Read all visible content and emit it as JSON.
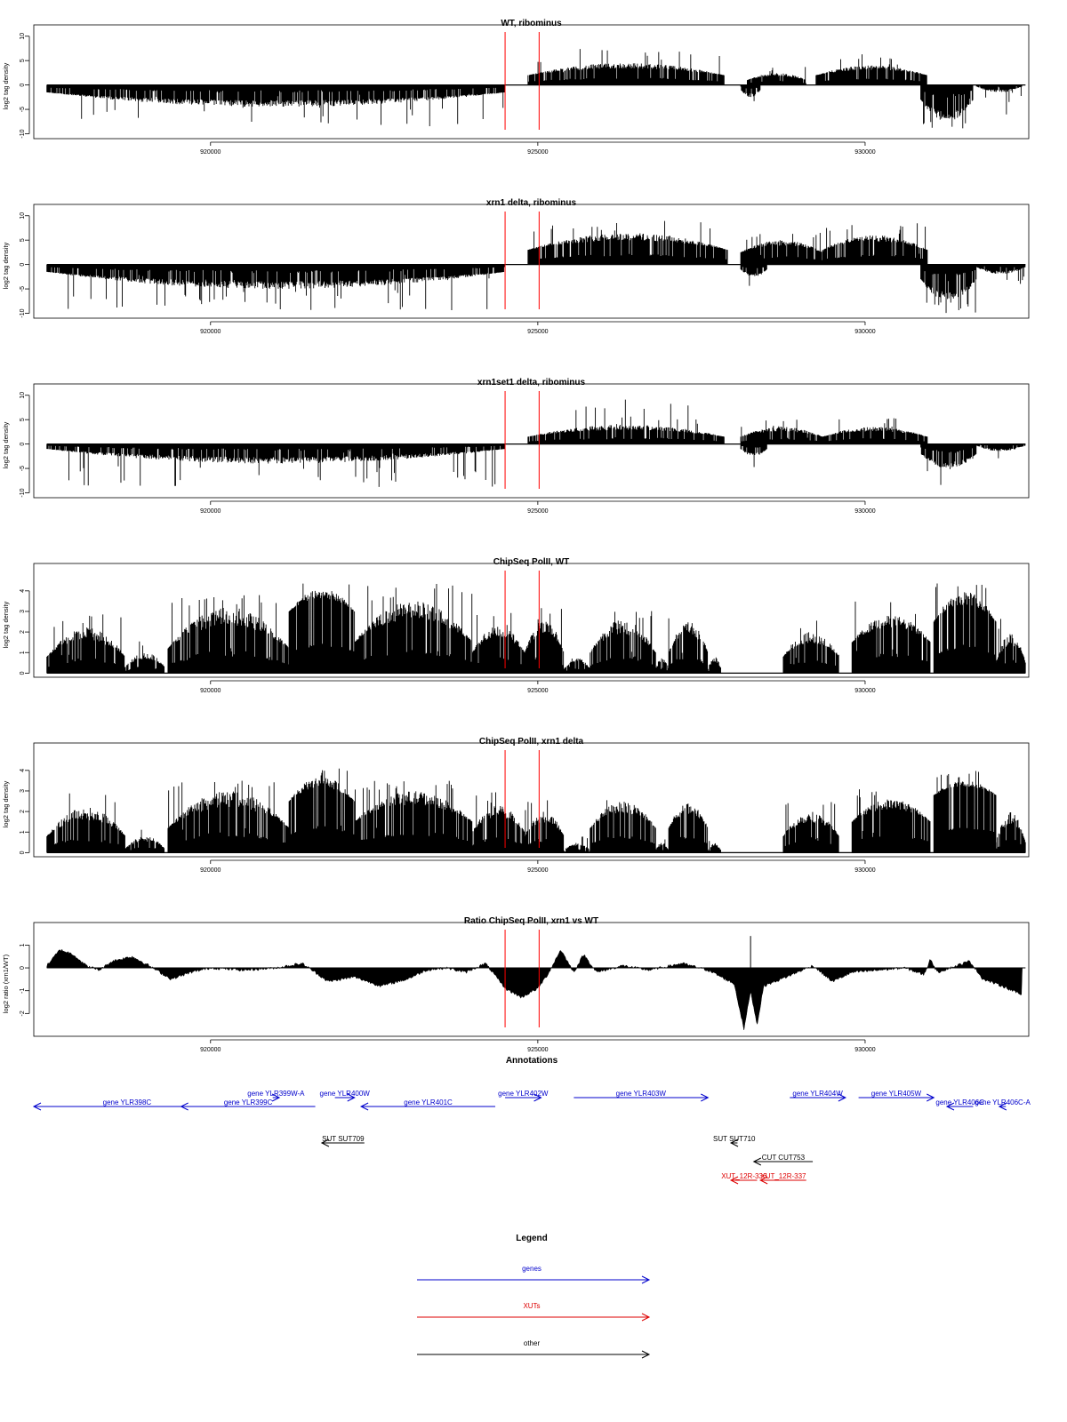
{
  "chart_data": [
    {
      "type": "bar",
      "title": "WT, ribominus",
      "ylabel": "log2 tag density",
      "ylim": [
        -11,
        10.5
      ],
      "yticks": [
        -10,
        -5,
        0,
        5,
        10
      ],
      "xlim": [
        917300,
        932500
      ],
      "xticks": [
        920000,
        925000,
        930000
      ],
      "markers": [
        924500,
        925020
      ],
      "series": [
        {
          "name": "",
          "segments": [
            {
              "from": 917500,
              "to": 924500,
              "dir": -1,
              "lo": 1.5,
              "hi": 4.5,
              "peak": 8.5
            },
            {
              "from": 924850,
              "to": 927850,
              "dir": 1,
              "lo": 2.0,
              "hi": 4.5,
              "peak": 7.5
            },
            {
              "from": 928100,
              "to": 928400,
              "dir": -1,
              "lo": 1.0,
              "hi": 2.5,
              "peak": 5.5
            },
            {
              "from": 928200,
              "to": 929100,
              "dir": 1,
              "lo": 1.0,
              "hi": 2.5,
              "peak": 4.0
            },
            {
              "from": 929250,
              "to": 930950,
              "dir": 1,
              "lo": 2.0,
              "hi": 4.0,
              "peak": 6.5
            },
            {
              "from": 930850,
              "to": 931650,
              "dir": -1,
              "lo": 3.0,
              "hi": 7.5,
              "peak": 9.5
            },
            {
              "from": 931700,
              "to": 932400,
              "dir": -1,
              "lo": 0.3,
              "hi": 1.5,
              "peak": 6.5
            }
          ]
        }
      ]
    },
    {
      "type": "bar",
      "title": "xrn1 delta, ribominus",
      "ylabel": "log2 tag density",
      "ylim": [
        -11,
        10.5
      ],
      "yticks": [
        -10,
        -5,
        0,
        5,
        10
      ],
      "xlim": [
        917300,
        932500
      ],
      "xticks": [
        920000,
        925000,
        930000
      ],
      "markers": [
        924500,
        925020
      ],
      "series": [
        {
          "name": "",
          "segments": [
            {
              "from": 917500,
              "to": 924500,
              "dir": -1,
              "lo": 1.5,
              "hi": 5.0,
              "peak": 9.5
            },
            {
              "from": 924850,
              "to": 927900,
              "dir": 1,
              "lo": 3.0,
              "hi": 6.5,
              "peak": 9.0
            },
            {
              "from": 928100,
              "to": 928500,
              "dir": -1,
              "lo": 1.0,
              "hi": 2.5,
              "peak": 5.5
            },
            {
              "from": 928100,
              "to": 929350,
              "dir": 1,
              "lo": 2.5,
              "hi": 5.0,
              "peak": 6.5
            },
            {
              "from": 929350,
              "to": 930950,
              "dir": 1,
              "lo": 3.0,
              "hi": 6.0,
              "peak": 8.5
            },
            {
              "from": 930850,
              "to": 931700,
              "dir": -1,
              "lo": 3.0,
              "hi": 7.5,
              "peak": 10.0
            },
            {
              "from": 931700,
              "to": 932450,
              "dir": -1,
              "lo": 0.5,
              "hi": 2.0,
              "peak": 4.0
            }
          ]
        }
      ]
    },
    {
      "type": "bar",
      "title": "xrn1set1 delta, ribominus",
      "ylabel": "log2 tag density",
      "ylim": [
        -11,
        10.5
      ],
      "yticks": [
        -10,
        -5,
        0,
        5,
        10
      ],
      "xlim": [
        917300,
        932500
      ],
      "xticks": [
        920000,
        925000,
        930000
      ],
      "markers": [
        924500,
        925020
      ],
      "series": [
        {
          "name": "",
          "segments": [
            {
              "from": 917500,
              "to": 924500,
              "dir": -1,
              "lo": 1.0,
              "hi": 4.0,
              "peak": 9.0
            },
            {
              "from": 924850,
              "to": 927850,
              "dir": 1,
              "lo": 1.5,
              "hi": 4.0,
              "peak": 9.5
            },
            {
              "from": 928100,
              "to": 928500,
              "dir": -1,
              "lo": 1.0,
              "hi": 2.5,
              "peak": 6.0
            },
            {
              "from": 928100,
              "to": 929350,
              "dir": 1,
              "lo": 1.5,
              "hi": 3.5,
              "peak": 5.5
            },
            {
              "from": 929350,
              "to": 930950,
              "dir": 1,
              "lo": 1.5,
              "hi": 3.5,
              "peak": 5.5
            },
            {
              "from": 930850,
              "to": 931700,
              "dir": -1,
              "lo": 2.0,
              "hi": 5.0,
              "peak": 9.0
            },
            {
              "from": 931700,
              "to": 932450,
              "dir": -1,
              "lo": 0.3,
              "hi": 1.5,
              "peak": 4.0
            }
          ]
        }
      ]
    },
    {
      "type": "bar",
      "title": "ChipSeq PolII, WT",
      "ylabel": "log2 tag density",
      "ylim": [
        -0.2,
        4.9
      ],
      "yticks": [
        0,
        1,
        2,
        3,
        4
      ],
      "xlim": [
        917300,
        932500
      ],
      "xticks": [
        920000,
        925000,
        930000
      ],
      "markers": [
        924500,
        925020
      ],
      "series": [
        {
          "name": "",
          "segments": [
            {
              "from": 917500,
              "to": 918700,
              "dir": 1,
              "lo": 0.8,
              "hi": 2.2,
              "peak": 2.9
            },
            {
              "from": 918700,
              "to": 919300,
              "dir": 1,
              "lo": 0.3,
              "hi": 1.0,
              "peak": 1.6
            },
            {
              "from": 919350,
              "to": 921200,
              "dir": 1,
              "lo": 1.2,
              "hi": 3.2,
              "peak": 3.8
            },
            {
              "from": 921200,
              "to": 922200,
              "dir": 1,
              "lo": 3.0,
              "hi": 4.1,
              "peak": 4.7
            },
            {
              "from": 922200,
              "to": 924000,
              "dir": 1,
              "lo": 1.5,
              "hi": 3.5,
              "peak": 4.4
            },
            {
              "from": 924000,
              "to": 924800,
              "dir": 1,
              "lo": 1.0,
              "hi": 2.3,
              "peak": 3.0
            },
            {
              "from": 924800,
              "to": 925400,
              "dir": 1,
              "lo": 1.0,
              "hi": 2.6,
              "peak": 3.2
            },
            {
              "from": 925400,
              "to": 925800,
              "dir": 1,
              "lo": 0.2,
              "hi": 0.8,
              "peak": 1.5
            },
            {
              "from": 925800,
              "to": 926800,
              "dir": 1,
              "lo": 1.0,
              "hi": 2.6,
              "peak": 3.2
            },
            {
              "from": 926800,
              "to": 927000,
              "dir": 1,
              "lo": 0.2,
              "hi": 0.8,
              "peak": 1.5
            },
            {
              "from": 927000,
              "to": 927600,
              "dir": 1,
              "lo": 1.0,
              "hi": 2.5,
              "peak": 3.1
            },
            {
              "from": 927600,
              "to": 927800,
              "dir": 1,
              "lo": 0.2,
              "hi": 0.8,
              "peak": 1.5
            },
            {
              "from": 928750,
              "to": 929600,
              "dir": 1,
              "lo": 0.8,
              "hi": 2.0,
              "peak": 2.6
            },
            {
              "from": 929800,
              "to": 931000,
              "dir": 1,
              "lo": 1.5,
              "hi": 2.8,
              "peak": 3.5
            },
            {
              "from": 931050,
              "to": 932000,
              "dir": 1,
              "lo": 2.5,
              "hi": 4.0,
              "peak": 4.6
            },
            {
              "from": 932000,
              "to": 932450,
              "dir": 1,
              "lo": 0.5,
              "hi": 2.0,
              "peak": 2.8
            }
          ]
        }
      ]
    },
    {
      "type": "bar",
      "title": "ChipSeq PolII, xrn1 delta",
      "ylabel": "log2 tag density",
      "ylim": [
        -0.2,
        4.9
      ],
      "yticks": [
        0,
        1,
        2,
        3,
        4
      ],
      "xlim": [
        917300,
        932500
      ],
      "xticks": [
        920000,
        925000,
        930000
      ],
      "markers": [
        924500,
        925020
      ],
      "series": [
        {
          "name": "",
          "segments": [
            {
              "from": 917500,
              "to": 918700,
              "dir": 1,
              "lo": 0.8,
              "hi": 2.2,
              "peak": 2.9
            },
            {
              "from": 918700,
              "to": 919300,
              "dir": 1,
              "lo": 0.2,
              "hi": 0.8,
              "peak": 1.3
            },
            {
              "from": 919350,
              "to": 921200,
              "dir": 1,
              "lo": 1.2,
              "hi": 3.0,
              "peak": 3.5
            },
            {
              "from": 921200,
              "to": 922200,
              "dir": 1,
              "lo": 2.5,
              "hi": 3.7,
              "peak": 4.1
            },
            {
              "from": 922200,
              "to": 924000,
              "dir": 1,
              "lo": 1.5,
              "hi": 3.0,
              "peak": 3.5
            },
            {
              "from": 924000,
              "to": 924800,
              "dir": 1,
              "lo": 1.0,
              "hi": 2.3,
              "peak": 3.0
            },
            {
              "from": 924800,
              "to": 925400,
              "dir": 1,
              "lo": 0.8,
              "hi": 2.0,
              "peak": 2.6
            },
            {
              "from": 925400,
              "to": 925800,
              "dir": 1,
              "lo": 0.1,
              "hi": 0.5,
              "peak": 0.8
            },
            {
              "from": 925800,
              "to": 926800,
              "dir": 1,
              "lo": 1.2,
              "hi": 2.5,
              "peak": 2.8
            },
            {
              "from": 926800,
              "to": 927000,
              "dir": 1,
              "lo": 0.1,
              "hi": 0.5,
              "peak": 0.8
            },
            {
              "from": 927000,
              "to": 927600,
              "dir": 1,
              "lo": 1.2,
              "hi": 2.4,
              "peak": 2.8
            },
            {
              "from": 927600,
              "to": 927800,
              "dir": 1,
              "lo": 0.1,
              "hi": 0.5,
              "peak": 0.8
            },
            {
              "from": 928750,
              "to": 929600,
              "dir": 1,
              "lo": 0.8,
              "hi": 2.0,
              "peak": 2.6
            },
            {
              "from": 929800,
              "to": 931000,
              "dir": 1,
              "lo": 1.5,
              "hi": 2.6,
              "peak": 3.1
            },
            {
              "from": 931050,
              "to": 932000,
              "dir": 1,
              "lo": 2.8,
              "hi": 3.5,
              "peak": 4.0
            },
            {
              "from": 932000,
              "to": 932450,
              "dir": 1,
              "lo": 0.5,
              "hi": 2.0,
              "peak": 2.6
            }
          ]
        }
      ]
    },
    {
      "type": "area",
      "title": "Ratio ChipSeq PolII, xrn1 vs WT",
      "ylabel": "log2 ratio (xrn1/WT)",
      "ylim": [
        -3.0,
        1.6
      ],
      "yticks": [
        -2,
        -1,
        0,
        1
      ],
      "xlim": [
        917300,
        932500
      ],
      "xticks": [
        920000,
        925000,
        930000
      ],
      "markers": [
        924500,
        925020
      ],
      "series": [
        {
          "name": "",
          "points": [
            [
              917500,
              0.1
            ],
            [
              917700,
              0.8
            ],
            [
              917900,
              0.6
            ],
            [
              918100,
              0.1
            ],
            [
              918300,
              -0.1
            ],
            [
              918500,
              0.3
            ],
            [
              918800,
              0.5
            ],
            [
              919000,
              0.2
            ],
            [
              919400,
              -0.5
            ],
            [
              919700,
              -0.2
            ],
            [
              920000,
              0.0
            ],
            [
              920500,
              -0.1
            ],
            [
              921000,
              0.0
            ],
            [
              921400,
              0.2
            ],
            [
              921800,
              -0.6
            ],
            [
              922200,
              -0.4
            ],
            [
              922600,
              -0.8
            ],
            [
              923000,
              -0.5
            ],
            [
              923300,
              -0.1
            ],
            [
              923600,
              0.0
            ],
            [
              923900,
              -0.2
            ],
            [
              924200,
              0.2
            ],
            [
              924500,
              -0.9
            ],
            [
              924750,
              -1.3
            ],
            [
              925000,
              -0.9
            ],
            [
              925150,
              -0.3
            ],
            [
              925350,
              0.8
            ],
            [
              925550,
              -0.2
            ],
            [
              925700,
              0.6
            ],
            [
              925900,
              -0.2
            ],
            [
              926300,
              0.1
            ],
            [
              926700,
              -0.1
            ],
            [
              927200,
              0.2
            ],
            [
              927600,
              -0.1
            ],
            [
              928000,
              -0.7
            ],
            [
              928150,
              -2.7
            ],
            [
              928250,
              -1.0
            ],
            [
              928350,
              -2.5
            ],
            [
              928450,
              -0.8
            ],
            [
              928800,
              -0.4
            ],
            [
              929200,
              0.1
            ],
            [
              929500,
              -0.6
            ],
            [
              929800,
              -0.2
            ],
            [
              930200,
              -0.1
            ],
            [
              930600,
              0.0
            ],
            [
              930900,
              -0.3
            ],
            [
              931000,
              0.4
            ],
            [
              931100,
              -0.2
            ],
            [
              931400,
              0.1
            ],
            [
              931600,
              0.3
            ],
            [
              931800,
              -0.5
            ],
            [
              932100,
              -0.8
            ],
            [
              932400,
              -1.2
            ]
          ]
        }
      ]
    }
  ],
  "annotations": {
    "title": "Annotations",
    "colors": {
      "gene": "#0000cc",
      "xut": "#dd0000",
      "other": "#000000"
    },
    "features": [
      {
        "label": "gene YLR398C",
        "start": 917300,
        "end": 920150,
        "dir": "left",
        "type": "gene",
        "row": 1
      },
      {
        "label": "gene YLR399C",
        "start": 919550,
        "end": 921600,
        "dir": "left",
        "type": "gene",
        "row": 1
      },
      {
        "label": "gene YLR399W-A",
        "start": 920950,
        "end": 921050,
        "dir": "right",
        "type": "gene",
        "row": 0
      },
      {
        "label": "gene YLR400W",
        "start": 921900,
        "end": 922200,
        "dir": "right",
        "type": "gene",
        "row": 0
      },
      {
        "label": "gene YLR401C",
        "start": 922300,
        "end": 924350,
        "dir": "left",
        "type": "gene",
        "row": 1
      },
      {
        "label": "gene YLR402W",
        "start": 924500,
        "end": 925050,
        "dir": "right",
        "type": "gene",
        "row": 0
      },
      {
        "label": "gene YLR403W",
        "start": 925550,
        "end": 927600,
        "dir": "right",
        "type": "gene",
        "row": 0
      },
      {
        "label": "gene YLR404W",
        "start": 928850,
        "end": 929700,
        "dir": "right",
        "type": "gene",
        "row": 0
      },
      {
        "label": "gene YLR405W",
        "start": 929900,
        "end": 931050,
        "dir": "right",
        "type": "gene",
        "row": 0
      },
      {
        "label": "gene YLR406C",
        "start": 931250,
        "end": 931650,
        "dir": "left",
        "type": "gene",
        "row": 1
      },
      {
        "label": "gene YLR406C-A",
        "start": 932050,
        "end": 932150,
        "dir": "left",
        "type": "gene",
        "row": 1
      },
      {
        "label": "SUT SUT709",
        "start": 921700,
        "end": 922350,
        "dir": "left",
        "type": "other",
        "row": 3
      },
      {
        "label": "SUT SUT710",
        "start": 927950,
        "end": 928050,
        "dir": "left",
        "type": "other",
        "row": 3
      },
      {
        "label": "CUT CUT753",
        "start": 928300,
        "end": 929200,
        "dir": "left",
        "type": "other",
        "row": 4
      },
      {
        "label": "XUT_12R-336",
        "start": 927950,
        "end": 928350,
        "dir": "left",
        "type": "xut",
        "row": 5
      },
      {
        "label": "XUT_12R-337",
        "start": 928400,
        "end": 929100,
        "dir": "left",
        "type": "xut",
        "row": 5
      }
    ]
  },
  "legend": {
    "title": "Legend",
    "items": [
      {
        "label": "genes",
        "type": "gene"
      },
      {
        "label": "XUTs",
        "type": "xut"
      },
      {
        "label": "other",
        "type": "other"
      }
    ]
  }
}
